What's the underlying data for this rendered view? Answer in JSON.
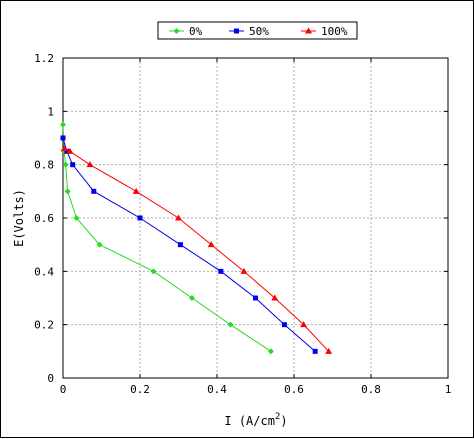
{
  "chart_data": {
    "type": "line",
    "title": "",
    "xlabel": "I  (A/cm",
    "xlabel_sup": "2",
    "xlabel_suffix": ")",
    "ylabel": "E(Volts)",
    "xlim": [
      0,
      1
    ],
    "ylim": [
      0,
      1.2
    ],
    "xticks": [
      0,
      0.2,
      0.4,
      0.6,
      0.8,
      1
    ],
    "xtick_labels": [
      "0",
      "0.2",
      "0.4",
      "0.6",
      "0.8",
      "1"
    ],
    "yticks": [
      0,
      0.2,
      0.4,
      0.6,
      0.8,
      1,
      1.2
    ],
    "ytick_labels": [
      "0",
      "0.2",
      "0.4",
      "0.6",
      "0.8",
      "1",
      "1.2"
    ],
    "grid": true,
    "legend_position": "top",
    "series": [
      {
        "name": "0%",
        "color": "#22dd22",
        "marker": "diamond",
        "x": [
          0.0,
          0.003,
          0.007,
          0.012,
          0.035,
          0.095,
          0.235,
          0.335,
          0.435,
          0.54
        ],
        "y": [
          0.95,
          0.85,
          0.8,
          0.7,
          0.6,
          0.5,
          0.4,
          0.3,
          0.2,
          0.1
        ]
      },
      {
        "name": "50%",
        "color": "#0000ee",
        "marker": "square",
        "x": [
          0.0,
          0.01,
          0.025,
          0.08,
          0.2,
          0.305,
          0.41,
          0.5,
          0.575,
          0.655
        ],
        "y": [
          0.9,
          0.85,
          0.8,
          0.7,
          0.6,
          0.5,
          0.4,
          0.3,
          0.2,
          0.1
        ]
      },
      {
        "name": "100%",
        "color": "#ff0000",
        "marker": "triangle",
        "x": [
          0.003,
          0.018,
          0.07,
          0.19,
          0.3,
          0.385,
          0.47,
          0.55,
          0.625,
          0.69
        ],
        "y": [
          0.86,
          0.85,
          0.8,
          0.7,
          0.6,
          0.5,
          0.4,
          0.3,
          0.2,
          0.1
        ]
      }
    ]
  }
}
